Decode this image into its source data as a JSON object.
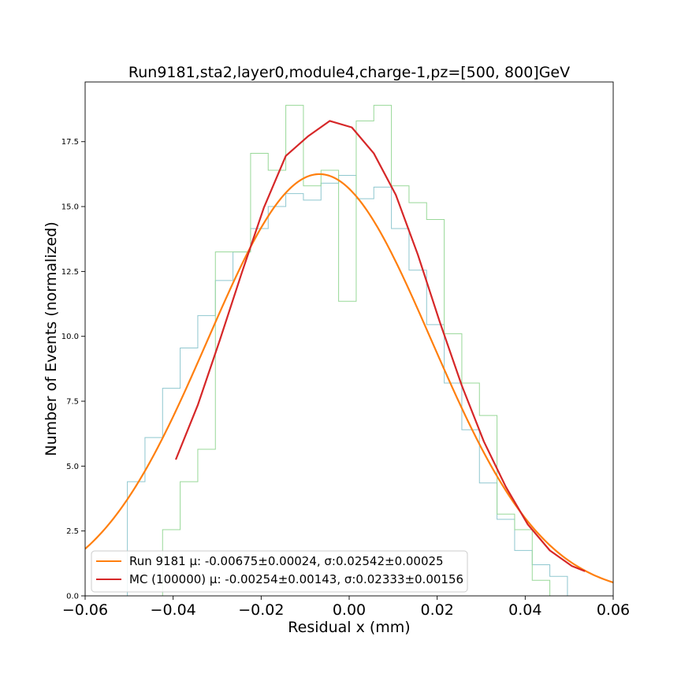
{
  "chart_data": {
    "type": "line",
    "title": "Run9181,sta2,layer0,module4,charge-1,pz=[500, 800]GeV",
    "xlabel": "Residual x (mm)",
    "ylabel": "Number of Events (normalized)",
    "xlim": [
      -0.06,
      0.06
    ],
    "ylim": [
      0,
      19.8
    ],
    "xticks": [
      -0.06,
      -0.04,
      -0.02,
      0.0,
      0.02,
      0.04,
      0.06
    ],
    "xtick_labels": [
      "−0.06",
      "−0.04",
      "−0.02",
      "0.00",
      "0.02",
      "0.04",
      "0.06"
    ],
    "yticks": [
      0.0,
      2.5,
      5.0,
      7.5,
      10.0,
      12.5,
      15.0,
      17.5
    ],
    "ytick_labels": [
      "0.0",
      "2.5",
      "5.0",
      "7.5",
      "10.0",
      "12.5",
      "15.0",
      "17.5"
    ],
    "grid": false,
    "legend_position": "lower-left",
    "histograms": [
      {
        "color": "#8fc7cf",
        "edges": [
          -0.0504,
          -0.0464,
          -0.0424,
          -0.0384,
          -0.0344,
          -0.0304,
          -0.0264,
          -0.0224,
          -0.0184,
          -0.0144,
          -0.0104,
          -0.0064,
          -0.0024,
          0.0016,
          0.0056,
          0.0096,
          0.0136,
          0.0176,
          0.0216,
          0.0256,
          0.0296,
          0.0336,
          0.0376,
          0.0416,
          0.0456,
          0.0496
        ],
        "values": [
          4.4,
          6.1,
          8.0,
          9.55,
          10.8,
          12.15,
          13.25,
          14.15,
          15.0,
          15.5,
          15.25,
          15.9,
          16.2,
          15.3,
          15.75,
          14.15,
          12.55,
          10.45,
          8.2,
          6.4,
          4.35,
          2.95,
          1.75,
          1.2,
          0.75
        ]
      },
      {
        "color": "#98d898",
        "edges": [
          -0.0424,
          -0.0384,
          -0.0344,
          -0.0304,
          -0.0264,
          -0.0224,
          -0.0184,
          -0.0144,
          -0.0104,
          -0.0064,
          -0.0024,
          0.0016,
          0.0056,
          0.0096,
          0.0136,
          0.0176,
          0.0216,
          0.0256,
          0.0296,
          0.0336,
          0.0376,
          0.0416,
          0.0456
        ],
        "values": [
          2.55,
          4.4,
          5.65,
          13.25,
          13.25,
          17.05,
          16.4,
          18.9,
          15.8,
          16.4,
          11.35,
          18.3,
          18.9,
          15.8,
          15.15,
          14.5,
          10.1,
          8.2,
          6.95,
          3.15,
          2.55,
          0.6,
          0.0
        ]
      }
    ],
    "series": [
      {
        "name": "Run 9181 μ: -0.00675±0.00024, σ:0.02542±0.00025",
        "color": "#ff7f0e",
        "kind": "gaussian",
        "amplitude": 16.25,
        "mean": -0.00675,
        "sigma": 0.02542,
        "x_range": [
          -0.06,
          0.06
        ]
      },
      {
        "name": "MC (100000) μ: -0.00254±0.00143, σ:0.02333±0.00156",
        "color": "#d62728",
        "kind": "points",
        "x": [
          -0.0394,
          -0.0344,
          -0.0294,
          -0.0244,
          -0.0194,
          -0.0144,
          -0.0094,
          -0.0044,
          0.0006,
          0.0056,
          0.0106,
          0.0156,
          0.0206,
          0.0256,
          0.0306,
          0.0356,
          0.0406,
          0.0456,
          0.0506,
          0.0536
        ],
        "y": [
          5.25,
          7.35,
          9.85,
          12.45,
          14.95,
          16.95,
          17.7,
          18.3,
          18.05,
          17.05,
          15.45,
          13.15,
          10.55,
          8.1,
          5.95,
          4.2,
          2.75,
          1.75,
          1.15,
          0.95
        ]
      }
    ]
  }
}
